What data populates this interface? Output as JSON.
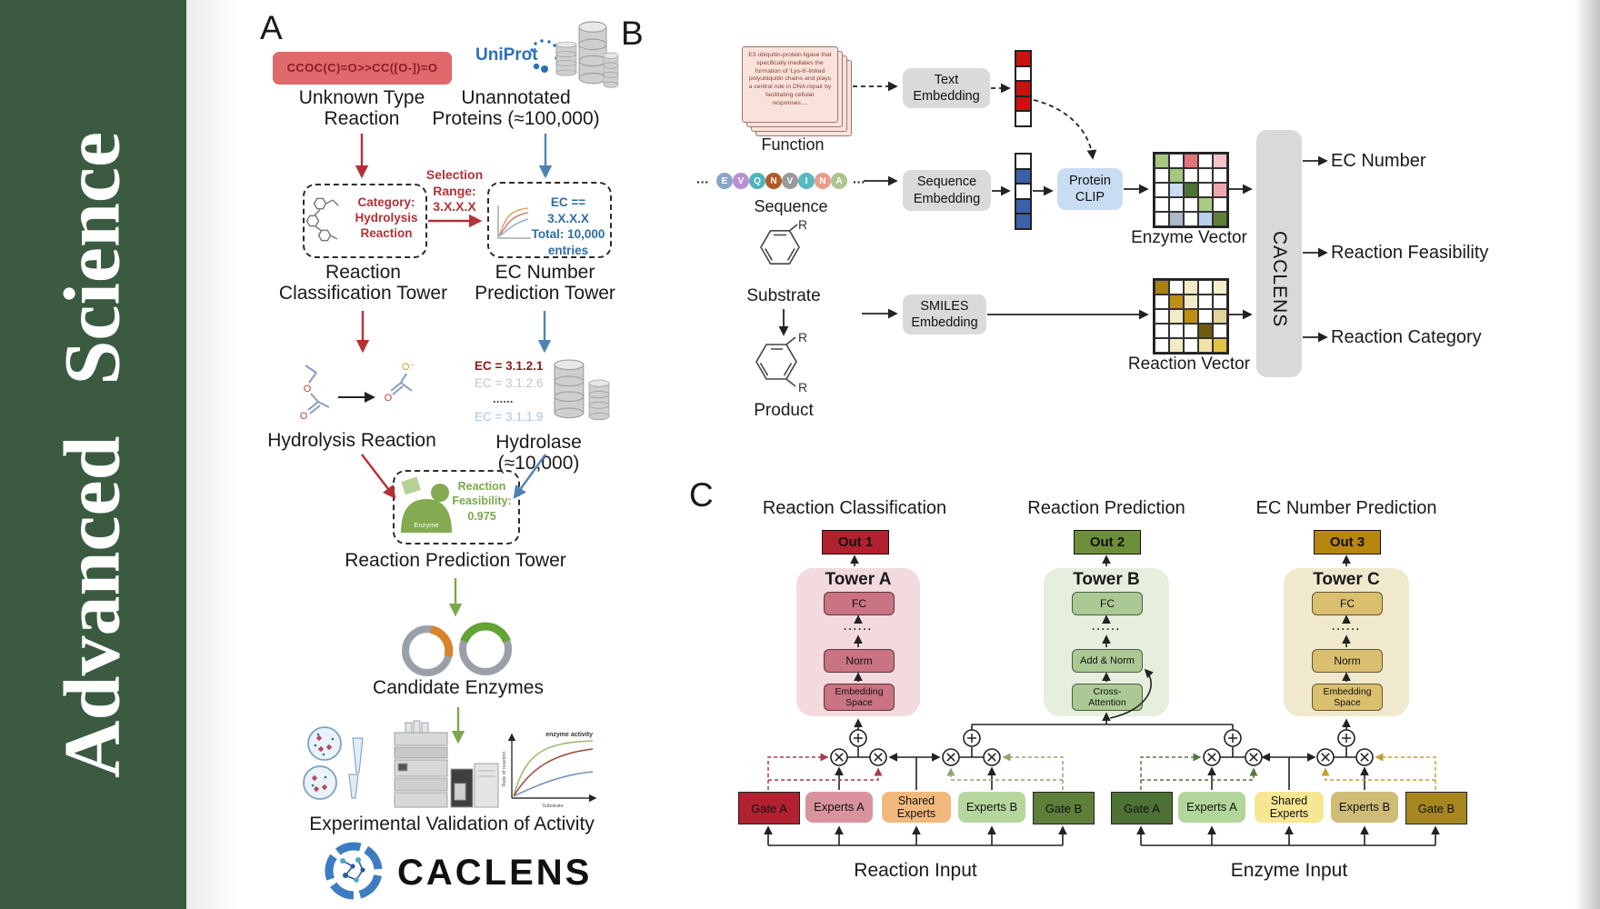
{
  "journal": {
    "name": "Advanced Science"
  },
  "colors": {
    "sidebar_green": "#3B5B41",
    "red_accent": "#b23238",
    "blue_accent": "#4e82b4",
    "green_accent": "#7aa84c",
    "smiles_box_bg": "#e0696b",
    "uniprot_blue": "#2b70b8",
    "protein_clip_bg": "#c9ddf2",
    "gray_box_bg": "#dadada",
    "tower_a": "#ca7383",
    "tower_b": "#abc994",
    "tower_c": "#d9bf6e",
    "out1": "#b2212f",
    "out2": "#6d8f3a",
    "out3": "#b8860e"
  },
  "panelA": {
    "label": "A",
    "smiles": "CCOC(C)=O>>CC([O-])=O",
    "unknown_reaction": "Unknown Type\nReaction",
    "uniprot": "UniProt",
    "unannotated": "Unannotated\nProteins (≈100,000)",
    "selection": "Selection\nRange:\n3.X.X.X",
    "category_box": "Category:\nHydrolysis\nReaction",
    "ec_box": "EC == 3.X.X.X\nTotal: 10,000\nentries",
    "classification_tower": "Reaction\nClassification Tower",
    "prediction_tower": "EC Number\nPrediction Tower",
    "hydrolysis_label": "Hydrolysis Reaction",
    "ec_list": [
      "EC = 3.1.2.1",
      "EC = 3.1.2.6",
      "......",
      "EC = 3.1.1.9"
    ],
    "hydrolase_label": "Hydrolase (≈10,000)",
    "enzyme_blob": "Enzyme",
    "feasibility": "Reaction\nFeasibility:\n0.975",
    "reaction_prediction_tower": "Reaction Prediction Tower",
    "candidate_enzymes": "Candidate Enzymes",
    "experimental_validation": "Experimental Validation of Activity",
    "logo_text": "CACLENS",
    "atoms": {
      "o": "O",
      "o2": "O",
      "o_minus": "O⁻",
      "o3": "O"
    },
    "mini_plot": {
      "ylabel": "Rate of reaction",
      "xlabel": "Substrate",
      "annotation": "enzyme activity"
    }
  },
  "panelB": {
    "label": "B",
    "function_text": "E3 ubiquitin-protein ligase that specifically mediates the formation of 'Lys-6'-linked polyubiquitin chains and plays a central role in DNA repair by facilitating cellular responses....",
    "function_label": "Function",
    "sequence_label": "Sequence",
    "ellipsis": "···",
    "sequence_chips": [
      {
        "label": "E",
        "color": "#8aa5c5"
      },
      {
        "label": "V",
        "color": "#b48fd6"
      },
      {
        "label": "Q",
        "color": "#4fb3ba"
      },
      {
        "label": "N",
        "color": "#b05a28"
      },
      {
        "label": "V",
        "color": "#9a9a9a"
      },
      {
        "label": "I",
        "color": "#58b8c2"
      },
      {
        "label": "N",
        "color": "#e89d8d"
      },
      {
        "label": "A",
        "color": "#adc593"
      }
    ],
    "text_embedding": "Text\nEmbedding",
    "sequence_embedding": "Sequence\nEmbedding",
    "smiles_embedding": "SMILES\nEmbedding",
    "protein_clip": "Protein\nCLIP",
    "substrate_label": "Substrate",
    "product_label": "Product",
    "r_group": "R",
    "enzyme_vector_label": "Enzyme Vector",
    "reaction_vector_label": "Reaction Vector",
    "caclens": "CACLENS",
    "outputs": [
      "EC Number",
      "Reaction Feasibility",
      "Reaction Category"
    ],
    "text_vector": [
      "#cc1111",
      "#ffffff",
      "#cc1111",
      "#cc1111",
      "#ffffff"
    ],
    "seq_vector": [
      "#ffffff",
      "#3b62a8",
      "#ffffff",
      "#3b62a8",
      "#3b62a8"
    ],
    "enzyme_matrix": [
      [
        "#a6c77f",
        "#ffffff",
        "#e2747c",
        "#ffffff",
        "#f4c3c8"
      ],
      [
        "#ffffff",
        "#a6c77f",
        "#ffffff",
        "#ffffff",
        "#ffffff"
      ],
      [
        "#ffffff",
        "#ccdcf0",
        "#4e7233",
        "#ffffff",
        "#eea8ac"
      ],
      [
        "#ffffff",
        "#ffffff",
        "#ffffff",
        "#a9cc82",
        "#ffffff"
      ],
      [
        "#ffffff",
        "#aab8c8",
        "#ffffff",
        "#b9cfec",
        "#5d8038"
      ]
    ],
    "reaction_matrix": [
      [
        "#a87f14",
        "#ffffff",
        "#f3ebc6",
        "#ffffff",
        "#f6efcf"
      ],
      [
        "#ffffff",
        "#bd8e13",
        "#f3ebc6",
        "#ffffff",
        "#ffffff"
      ],
      [
        "#ffffff",
        "#f3ebc6",
        "#bd8e13",
        "#ffffff",
        "#e3d49c"
      ],
      [
        "#ffffff",
        "#ffffff",
        "#ffffff",
        "#6f5a10",
        "#ffffff"
      ],
      [
        "#ffffff",
        "#f3ebc6",
        "#ffffff",
        "#f0e3a8",
        "#e3c23f"
      ]
    ]
  },
  "panelC": {
    "label": "C",
    "columns": [
      {
        "title": "Reaction Classification",
        "out": "Out 1",
        "tower": "Tower A",
        "fc": "FC",
        "dots": "......",
        "mid": "Norm",
        "bottom": "Embedding\nSpace"
      },
      {
        "title": "Reaction Prediction",
        "out": "Out 2",
        "tower": "Tower B",
        "fc": "FC",
        "dots": "......",
        "mid": "Add & Norm",
        "bottom": "Cross-\nAttention"
      },
      {
        "title": "EC Number Prediction",
        "out": "Out 3",
        "tower": "Tower C",
        "fc": "FC",
        "dots": "......",
        "mid": "Norm",
        "bottom": "Embedding\nSpace"
      }
    ],
    "groups": [
      {
        "label": "Reaction Input",
        "boxes": [
          "Gate A",
          "Experts A",
          "Shared\nExperts",
          "Experts B",
          "Gate B"
        ]
      },
      {
        "label": "Enzyme Input",
        "boxes": [
          "Gate A",
          "Experts A",
          "Shared\nExperts",
          "Experts B",
          "Gate B"
        ]
      }
    ]
  }
}
